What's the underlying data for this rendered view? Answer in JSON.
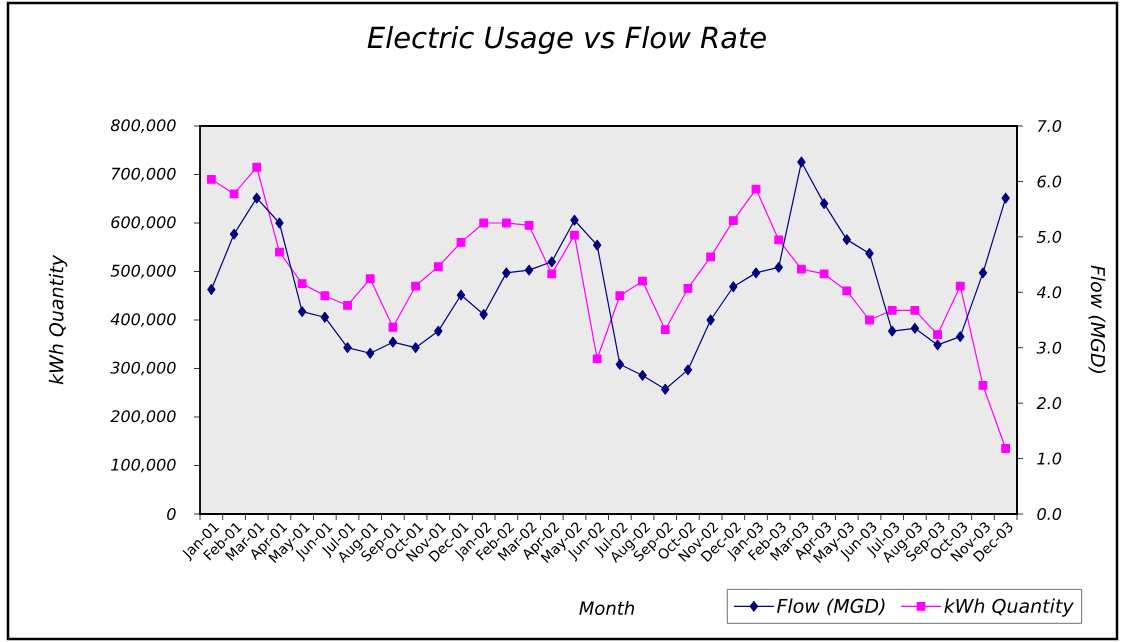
{
  "chart_data": {
    "type": "line",
    "title": "Electric Usage vs Flow Rate",
    "xlabel": "Month",
    "ylabel": "kWh Quantity",
    "y2label": "Flow (MGD)",
    "categories": [
      "Jan-01",
      "Feb-01",
      "Mar-01",
      "Apr-01",
      "May-01",
      "Jun-01",
      "Jul-01",
      "Aug-01",
      "Sep-01",
      "Oct-01",
      "Nov-01",
      "Dec-01",
      "Jan-02",
      "Feb-02",
      "Mar-02",
      "Apr-02",
      "May-02",
      "Jun-02",
      "Jul-02",
      "Aug-02",
      "Sep-02",
      "Oct-02",
      "Nov-02",
      "Dec-02",
      "Jan-03",
      "Feb-03",
      "Mar-03",
      "Apr-03",
      "May-03",
      "Jun-03",
      "Jul-03",
      "Aug-03",
      "Sep-03",
      "Oct-03",
      "Nov-03",
      "Dec-03"
    ],
    "series": [
      {
        "name": "Flow (MGD)",
        "color": "#000080",
        "axis": "y2",
        "marker": "diamond",
        "values": [
          4.05,
          5.05,
          5.7,
          5.25,
          3.65,
          3.55,
          3.0,
          2.9,
          3.1,
          3.0,
          3.3,
          3.95,
          3.6,
          4.35,
          4.4,
          4.55,
          5.3,
          4.85,
          2.7,
          2.5,
          2.25,
          2.6,
          3.5,
          4.1,
          4.35,
          4.45,
          6.35,
          5.6,
          4.95,
          4.7,
          3.3,
          3.35,
          3.05,
          3.2,
          4.35,
          5.7
        ]
      },
      {
        "name": "kWh Quantity",
        "color": "#ff00ff",
        "marker": "square",
        "values": [
          690000,
          660000,
          715000,
          540000,
          475000,
          450000,
          430000,
          485000,
          385000,
          470000,
          510000,
          560000,
          600000,
          600000,
          595000,
          495000,
          575000,
          320000,
          450000,
          480000,
          380000,
          465000,
          530000,
          605000,
          670000,
          565000,
          505000,
          495000,
          460000,
          400000,
          420000,
          420000,
          370000,
          470000,
          265000,
          135000
        ]
      }
    ],
    "ylim": [
      0,
      800000
    ],
    "yticks": [
      0,
      {
        "value": 100000,
        "label": "100,000"
      },
      {
        "value": 200000,
        "label": "200,000"
      },
      {
        "value": 300000,
        "label": "300,000"
      },
      {
        "value": 400000,
        "label": "400,000"
      },
      {
        "value": 500000,
        "label": "500,000"
      },
      {
        "value": 600000,
        "label": "600,000"
      },
      {
        "value": 700000,
        "label": "700,000"
      },
      {
        "value": 800000,
        "label": "800,000"
      }
    ],
    "y2lim": [
      0,
      7
    ],
    "y2ticks": [
      {
        "value": 0,
        "label": "0.0"
      },
      {
        "value": 1,
        "label": "1.0"
      },
      {
        "value": 2,
        "label": "2.0"
      },
      {
        "value": 3,
        "label": "3.0"
      },
      {
        "value": 4,
        "label": "4.0"
      },
      {
        "value": 5,
        "label": "5.0"
      },
      {
        "value": 6,
        "label": "6.0"
      },
      {
        "value": 7,
        "label": "7.0"
      }
    ],
    "legend": "bottom right",
    "line_style": "solid"
  }
}
